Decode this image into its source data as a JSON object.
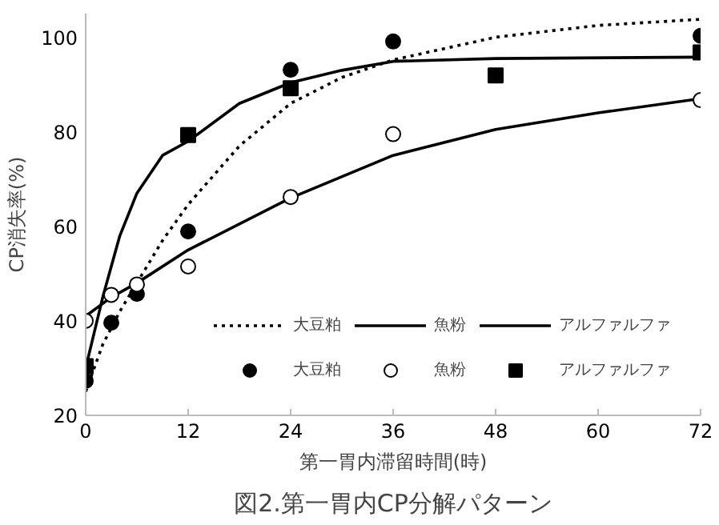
{
  "chart_data": {
    "type": "line",
    "title": "図2.第一胃内CP分解パターン",
    "xlabel": "第一胃内滞留時間(時)",
    "ylabel": "CP消失率(%)",
    "xlim": [
      0,
      72
    ],
    "xticks": [
      0,
      12,
      24,
      36,
      48,
      60,
      72
    ],
    "ylim": [
      20,
      105
    ],
    "yticks": [
      20,
      40,
      60,
      80,
      100
    ],
    "grid": false,
    "legend": "bottom right",
    "series": [
      {
        "name": "大豆粕",
        "line_style": "dotted",
        "color": "#000000",
        "x": [
          0,
          1,
          2,
          4,
          6,
          9,
          12,
          18,
          24,
          30,
          36,
          48,
          60,
          72
        ],
        "values": [
          25,
          30,
          35,
          42,
          48,
          57,
          64.6,
          77,
          86,
          91.5,
          95.2,
          100,
          102.5,
          103.8
        ]
      },
      {
        "name": "魚粉",
        "line_style": "solid",
        "color": "#000000",
        "x": [
          0,
          3,
          6,
          12,
          24,
          36,
          48,
          60,
          72
        ],
        "values": [
          41,
          45,
          48,
          55,
          66,
          75,
          80.5,
          84,
          87
        ]
      },
      {
        "name": "アルファルファ",
        "line_style": "solid",
        "color": "#000000",
        "x": [
          0,
          2,
          4,
          6,
          9,
          12,
          18,
          24,
          30,
          36,
          48,
          72
        ],
        "values": [
          30,
          45,
          58,
          67,
          75,
          78,
          86,
          90.4,
          93,
          94.9,
          95.5,
          95.8
        ]
      },
      {
        "name": "大豆粕",
        "type": "scatter",
        "marker": "circle",
        "color": "#000000",
        "x": [
          0,
          3,
          6,
          12,
          24,
          36,
          72
        ],
        "values": [
          27.3,
          39.6,
          45.7,
          58.9,
          93.1,
          99.1,
          100.3
        ]
      },
      {
        "name": "魚粉",
        "type": "scatter",
        "marker": "circle",
        "color": "#ffffff",
        "x": [
          0,
          3,
          6,
          12,
          24,
          36,
          72
        ],
        "values": [
          40,
          45.5,
          47.7,
          51.5,
          66.2,
          79.5,
          86.7
        ]
      },
      {
        "name": "アルファルファ",
        "type": "scatter",
        "marker": "square",
        "color": "#000000",
        "x": [
          0,
          12,
          24,
          48,
          72
        ],
        "values": [
          30.4,
          79.3,
          89.2,
          91.9,
          96.8
        ]
      }
    ]
  }
}
